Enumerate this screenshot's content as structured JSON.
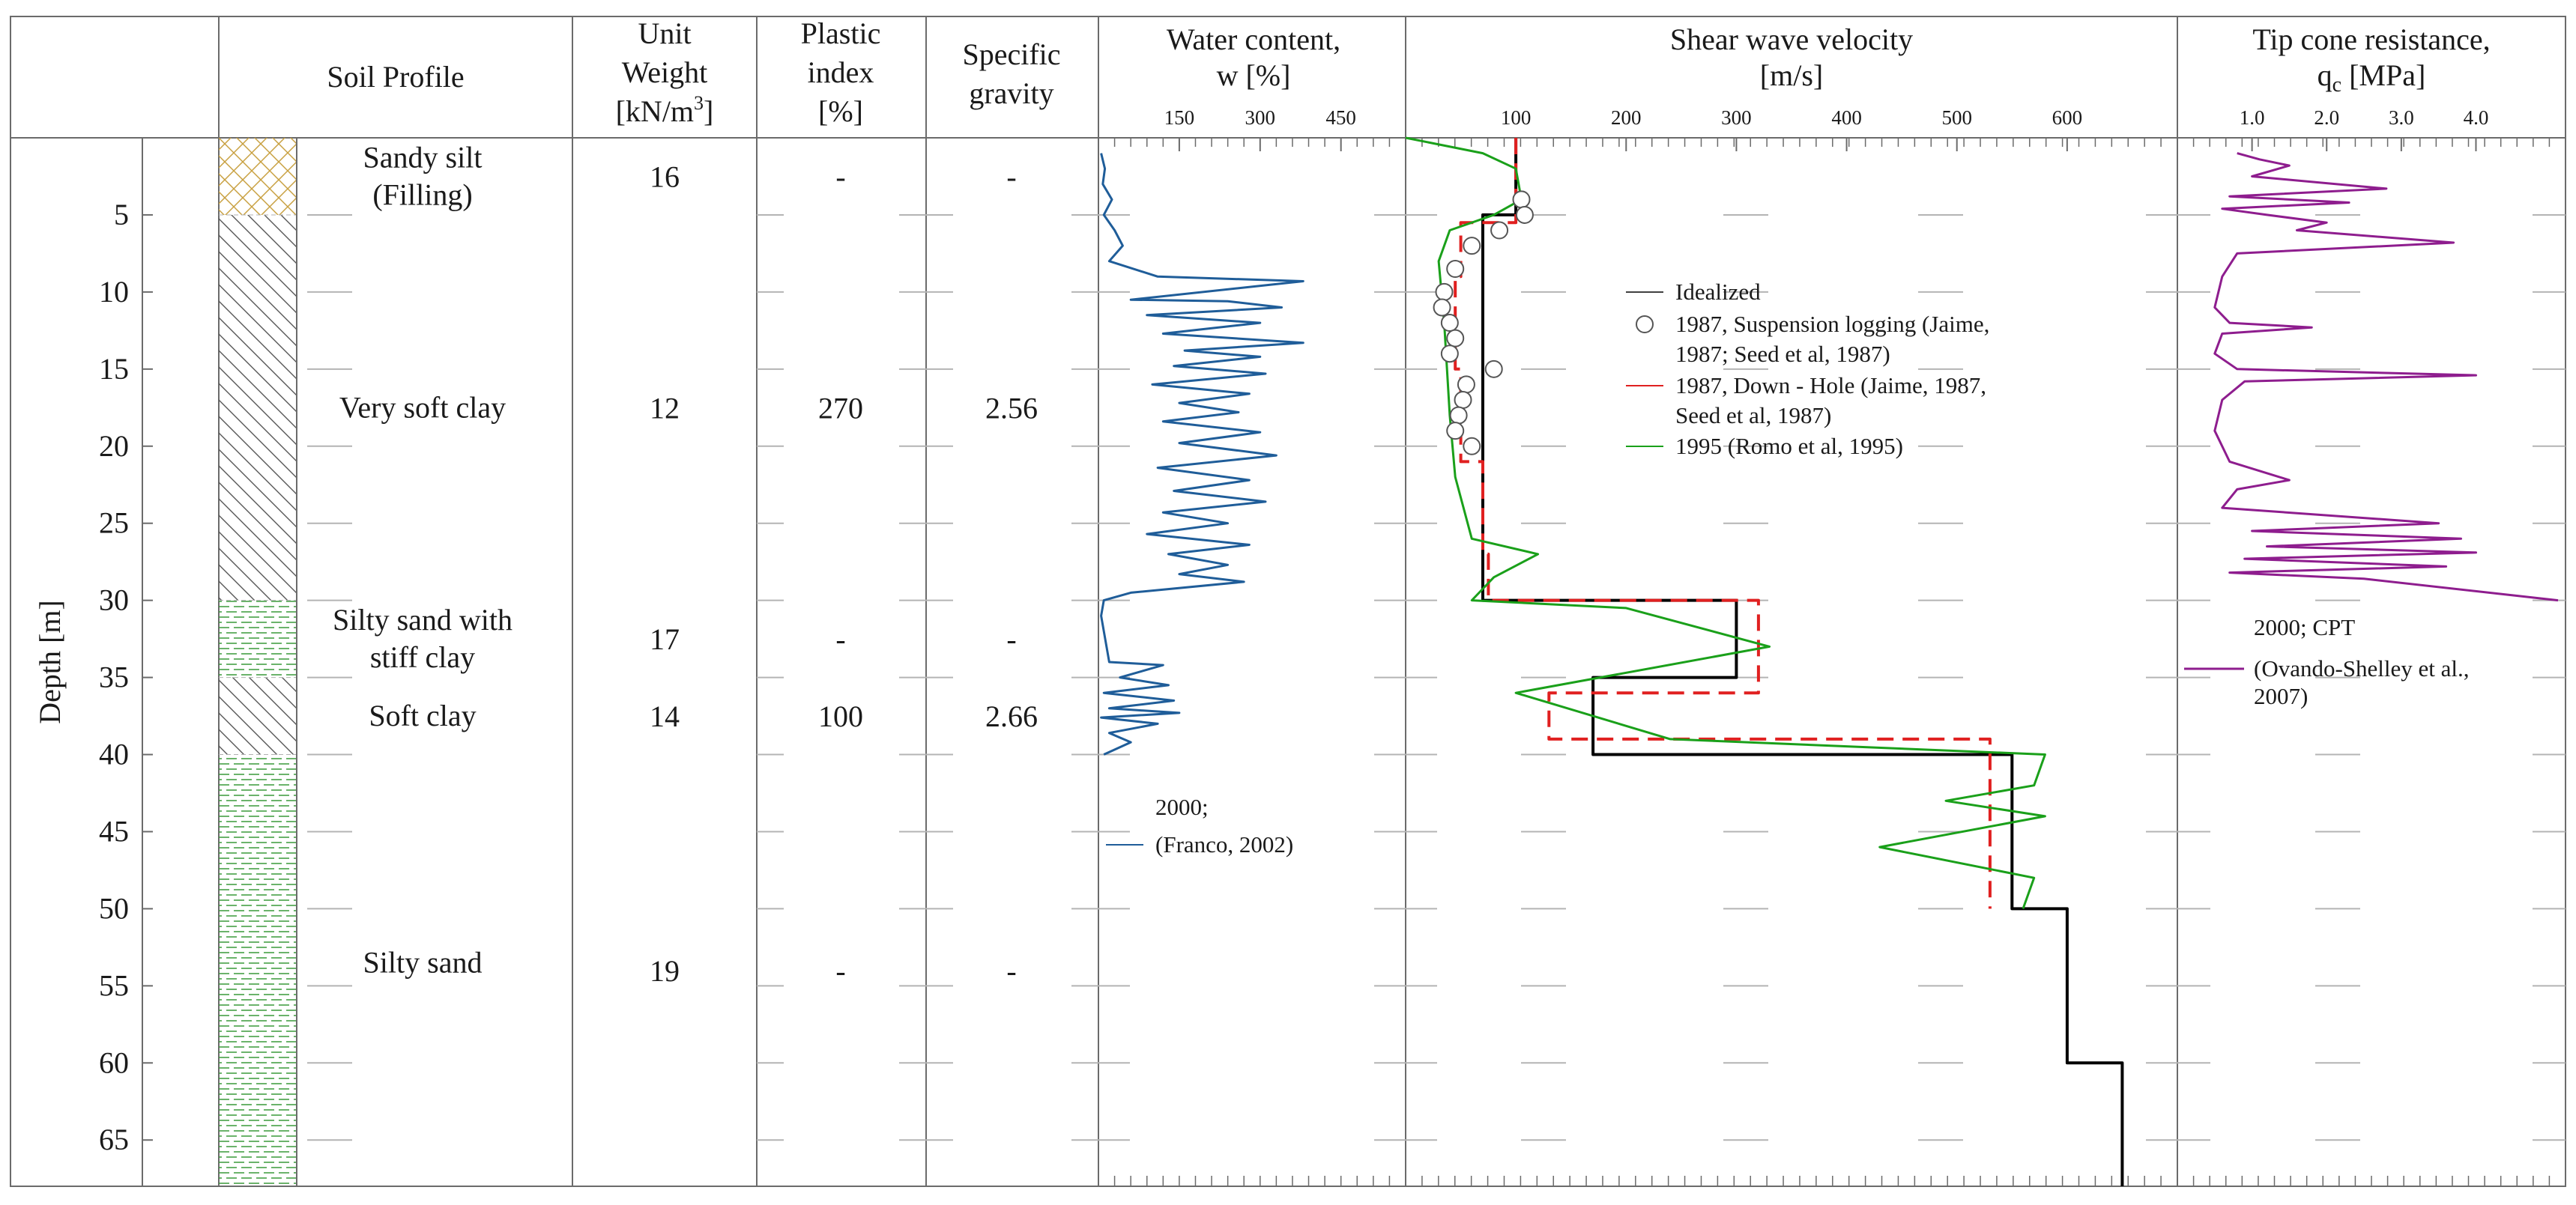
{
  "header": {
    "soil_profile": "Soil Profile",
    "unit_weight": [
      "Unit",
      "Weight",
      "[kN/m3]"
    ],
    "plastic_index": [
      "Plastic",
      "index",
      "[%]"
    ],
    "specific_gravity": [
      "Specific",
      "gravity"
    ],
    "water_content": [
      "Water content,",
      "w [%]"
    ],
    "shear_wave": [
      "Shear wave velocity",
      "[m/s]"
    ],
    "tip_cone": [
      "Tip cone resistance,",
      "qc [MPa]"
    ]
  },
  "depth_axis": {
    "label": "Depth [m]",
    "range": [
      0,
      68
    ],
    "ticks": [
      5,
      10,
      15,
      20,
      25,
      30,
      35,
      40,
      45,
      50,
      55,
      60,
      65
    ]
  },
  "layers": [
    {
      "name_lines": [
        "Sandy silt",
        "(Filling)"
      ],
      "top": 0,
      "bottom": 5,
      "pattern": "sandy-silt",
      "unit_weight": "16",
      "plastic_index": "-",
      "specific_gravity": "-"
    },
    {
      "name_lines": [
        "Very soft clay"
      ],
      "top": 5,
      "bottom": 30,
      "pattern": "clay",
      "unit_weight": "12",
      "plastic_index": "270",
      "specific_gravity": "2.56"
    },
    {
      "name_lines": [
        "Silty sand with",
        "stiff clay"
      ],
      "top": 30,
      "bottom": 35,
      "pattern": "silty-sand",
      "unit_weight": "17",
      "plastic_index": "-",
      "specific_gravity": "-"
    },
    {
      "name_lines": [
        "Soft clay"
      ],
      "top": 35,
      "bottom": 40,
      "pattern": "clay",
      "unit_weight": "14",
      "plastic_index": "100",
      "specific_gravity": "2.66"
    },
    {
      "name_lines": [
        "Silty sand"
      ],
      "top": 40,
      "bottom": 68,
      "pattern": "silty-sand",
      "unit_weight": "19",
      "plastic_index": "-",
      "specific_gravity": "-"
    }
  ],
  "colors": {
    "water_content": "#1f5d99",
    "idealized": "#000000",
    "suspension": "#555555",
    "downhole": "#e02020",
    "romo": "#1aa01a",
    "cpt": "#8e1d8e",
    "sandy_silt_pattern": "#c8a040",
    "silty_sand_pattern": "#3a9a3a"
  },
  "chart_data": [
    {
      "type": "line",
      "title": [
        "Water content,",
        "w [%]"
      ],
      "x_ticks": [
        150,
        300,
        450
      ],
      "x_range": [
        0,
        570
      ],
      "y_label": "Depth [m]",
      "legend": [
        "2000;",
        "(Franco, 2002)"
      ],
      "series": [
        {
          "name": "2000; (Franco, 2002)",
          "points": [
            [
              5,
              1
            ],
            [
              12,
              2
            ],
            [
              8,
              3
            ],
            [
              25,
              4
            ],
            [
              10,
              5
            ],
            [
              30,
              6
            ],
            [
              45,
              7
            ],
            [
              20,
              8
            ],
            [
              110,
              9
            ],
            [
              380,
              9.3
            ],
            [
              60,
              10.5
            ],
            [
              240,
              10.6
            ],
            [
              340,
              11
            ],
            [
              90,
              11.5
            ],
            [
              300,
              12
            ],
            [
              120,
              12.7
            ],
            [
              380,
              13.3
            ],
            [
              160,
              13.8
            ],
            [
              300,
              14.2
            ],
            [
              140,
              14.8
            ],
            [
              310,
              15.3
            ],
            [
              100,
              16
            ],
            [
              280,
              16.6
            ],
            [
              150,
              17.2
            ],
            [
              260,
              17.8
            ],
            [
              120,
              18.4
            ],
            [
              300,
              19.1
            ],
            [
              150,
              19.8
            ],
            [
              330,
              20.6
            ],
            [
              110,
              21.4
            ],
            [
              280,
              22.2
            ],
            [
              140,
              22.9
            ],
            [
              310,
              23.6
            ],
            [
              120,
              24.3
            ],
            [
              240,
              25
            ],
            [
              90,
              25.7
            ],
            [
              280,
              26.4
            ],
            [
              130,
              27
            ],
            [
              240,
              27.7
            ],
            [
              150,
              28.3
            ],
            [
              270,
              28.8
            ],
            [
              60,
              29.5
            ],
            [
              10,
              30
            ],
            [
              5,
              31
            ],
            [
              15,
              33
            ],
            [
              20,
              34
            ],
            [
              120,
              34.2
            ],
            [
              40,
              35
            ],
            [
              130,
              35.5
            ],
            [
              10,
              36
            ],
            [
              140,
              36.5
            ],
            [
              20,
              37
            ],
            [
              150,
              37.3
            ],
            [
              5,
              37.6
            ],
            [
              110,
              38
            ],
            [
              20,
              38.6
            ],
            [
              60,
              39.2
            ],
            [
              10,
              40
            ]
          ]
        }
      ]
    },
    {
      "type": "line",
      "title": [
        "Shear wave velocity",
        "[m/s]"
      ],
      "x_ticks": [
        100,
        200,
        300,
        400,
        500,
        600
      ],
      "x_range": [
        0,
        700
      ],
      "y_label": "Depth [m]",
      "legend": [
        "Idealized",
        "1987, Suspension logging (Jaime, 1987; Seed et al, 1987)",
        "1987, Down - Hole (Jaime, 1987, Seed et al, 1987)",
        "1995 (Romo et al, 1995)"
      ],
      "series": [
        {
          "name": "Idealized",
          "points": [
            [
              100,
              0
            ],
            [
              100,
              5
            ],
            [
              70,
              5
            ],
            [
              70,
              30
            ],
            [
              300,
              30
            ],
            [
              300,
              35
            ],
            [
              170,
              35
            ],
            [
              170,
              40
            ],
            [
              550,
              40
            ],
            [
              550,
              50
            ],
            [
              600,
              50
            ],
            [
              600,
              60
            ],
            [
              650,
              60
            ],
            [
              650,
              68
            ]
          ]
        },
        {
          "name": "1987, Suspension logging (Jaime, 1987; Seed et al, 1987)",
          "points": [
            [
              105,
              4
            ],
            [
              108,
              5
            ],
            [
              85,
              6
            ],
            [
              60,
              7
            ],
            [
              45,
              8.5
            ],
            [
              35,
              10
            ],
            [
              33,
              11
            ],
            [
              40,
              12
            ],
            [
              45,
              13
            ],
            [
              40,
              14
            ],
            [
              80,
              15
            ],
            [
              55,
              16
            ],
            [
              52,
              17
            ],
            [
              48,
              18
            ],
            [
              45,
              19
            ],
            [
              60,
              20
            ]
          ]
        },
        {
          "name": "1987, Down - Hole (Jaime, 1987, Seed et al, 1987)",
          "points": [
            [
              100,
              0
            ],
            [
              100,
              5.5
            ],
            [
              50,
              5.5
            ],
            [
              50,
              9
            ],
            [
              45,
              9
            ],
            [
              45,
              15
            ],
            [
              50,
              15
            ],
            [
              50,
              21
            ],
            [
              70,
              21
            ],
            [
              70,
              27
            ],
            [
              75,
              27
            ],
            [
              75,
              30
            ],
            [
              320,
              30
            ],
            [
              320,
              36
            ],
            [
              130,
              36
            ],
            [
              130,
              39
            ],
            [
              530,
              39
            ],
            [
              530,
              50
            ]
          ]
        },
        {
          "name": "1995 (Romo et al, 1995)",
          "points": [
            [
              0,
              0
            ],
            [
              70,
              1
            ],
            [
              100,
              2
            ],
            [
              105,
              4
            ],
            [
              80,
              5
            ],
            [
              40,
              6
            ],
            [
              30,
              8
            ],
            [
              35,
              12
            ],
            [
              40,
              18
            ],
            [
              45,
              22
            ],
            [
              60,
              26
            ],
            [
              120,
              27
            ],
            [
              80,
              28.5
            ],
            [
              60,
              30
            ],
            [
              200,
              30.5
            ],
            [
              330,
              33
            ],
            [
              100,
              36
            ],
            [
              240,
              39
            ],
            [
              580,
              40
            ],
            [
              570,
              42
            ],
            [
              490,
              43
            ],
            [
              580,
              44
            ],
            [
              430,
              46
            ],
            [
              570,
              48
            ],
            [
              560,
              50
            ]
          ]
        }
      ]
    },
    {
      "type": "line",
      "title": [
        "Tip cone resistance,",
        "qc [MPa]"
      ],
      "x_ticks": [
        1.0,
        2.0,
        3.0,
        4.0
      ],
      "x_range": [
        0,
        5.2
      ],
      "y_label": "Depth [m]",
      "legend": [
        "2000; CPT",
        "(Ovando-Shelley et al.,",
        "2007)"
      ],
      "series": [
        {
          "name": "2000; CPT (Ovando-Shelley et al., 2007)",
          "points": [
            [
              0.8,
              1
            ],
            [
              1.1,
              1.4
            ],
            [
              1.5,
              1.8
            ],
            [
              1.0,
              2.5
            ],
            [
              2.8,
              3.3
            ],
            [
              0.7,
              3.8
            ],
            [
              2.3,
              4.2
            ],
            [
              0.6,
              4.6
            ],
            [
              1.2,
              5
            ],
            [
              2.0,
              5.5
            ],
            [
              1.6,
              6
            ],
            [
              3.7,
              6.8
            ],
            [
              0.8,
              7.5
            ],
            [
              0.6,
              9
            ],
            [
              0.5,
              11
            ],
            [
              0.7,
              12
            ],
            [
              1.8,
              12.3
            ],
            [
              0.6,
              12.7
            ],
            [
              0.5,
              14
            ],
            [
              0.8,
              15
            ],
            [
              4.0,
              15.4
            ],
            [
              0.9,
              15.8
            ],
            [
              0.6,
              17
            ],
            [
              0.5,
              19
            ],
            [
              0.7,
              21
            ],
            [
              1.5,
              22.2
            ],
            [
              0.8,
              22.8
            ],
            [
              0.6,
              24
            ],
            [
              3.5,
              25
            ],
            [
              1.0,
              25.5
            ],
            [
              3.8,
              26
            ],
            [
              1.2,
              26.5
            ],
            [
              4.0,
              26.9
            ],
            [
              0.9,
              27.3
            ],
            [
              3.6,
              27.8
            ],
            [
              0.7,
              28.2
            ],
            [
              2.5,
              28.6
            ],
            [
              5.1,
              30
            ]
          ]
        }
      ]
    }
  ]
}
